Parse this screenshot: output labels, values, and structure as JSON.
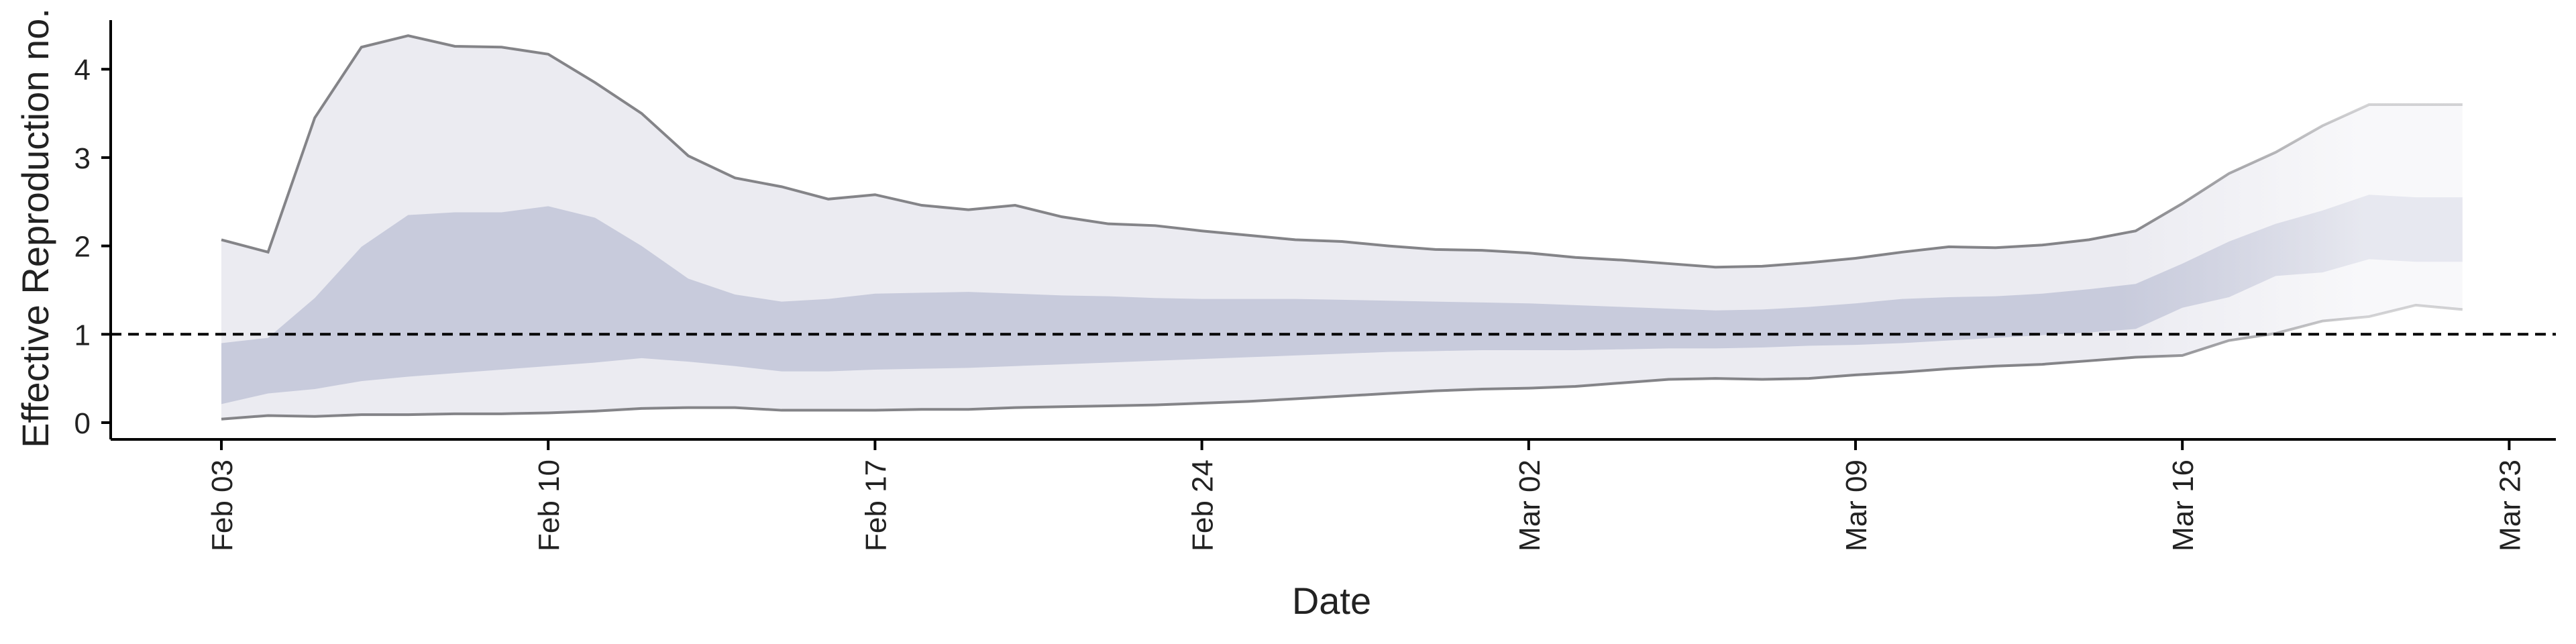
{
  "chart_data": {
    "type": "area",
    "xlabel": "Date",
    "ylabel": "Effective Reproduction no.",
    "x_tick_labels": [
      "Feb 03",
      "Feb 10",
      "Feb 17",
      "Feb 24",
      "Mar 02",
      "Mar 09",
      "Mar 16",
      "Mar 23"
    ],
    "y_ticks": [
      0,
      1,
      2,
      3,
      4
    ],
    "ylim": [
      -0.2,
      4.6
    ],
    "xlim": [
      "2020-02-01",
      "2020-03-24"
    ],
    "reference_line": {
      "y": 1,
      "style": "dashed"
    },
    "dates": [
      "2020-02-03",
      "2020-02-04",
      "2020-02-05",
      "2020-02-06",
      "2020-02-07",
      "2020-02-08",
      "2020-02-09",
      "2020-02-10",
      "2020-02-11",
      "2020-02-12",
      "2020-02-13",
      "2020-02-14",
      "2020-02-15",
      "2020-02-16",
      "2020-02-17",
      "2020-02-18",
      "2020-02-19",
      "2020-02-20",
      "2020-02-21",
      "2020-02-22",
      "2020-02-23",
      "2020-02-24",
      "2020-02-25",
      "2020-02-26",
      "2020-02-27",
      "2020-02-28",
      "2020-02-29",
      "2020-03-01",
      "2020-03-02",
      "2020-03-03",
      "2020-03-04",
      "2020-03-05",
      "2020-03-06",
      "2020-03-07",
      "2020-03-08",
      "2020-03-09",
      "2020-03-10",
      "2020-03-11",
      "2020-03-12",
      "2020-03-13",
      "2020-03-14",
      "2020-03-15",
      "2020-03-16",
      "2020-03-17",
      "2020-03-18",
      "2020-03-19",
      "2020-03-20",
      "2020-03-21",
      "2020-03-22"
    ],
    "series": [
      {
        "role": "outer_upper",
        "values": [
          2.07,
          1.93,
          3.45,
          4.25,
          4.38,
          4.26,
          4.25,
          4.17,
          3.85,
          3.5,
          3.02,
          2.77,
          2.67,
          2.53,
          2.58,
          2.46,
          2.41,
          2.46,
          2.33,
          2.25,
          2.23,
          2.17,
          2.12,
          2.07,
          2.05,
          2.0,
          1.96,
          1.95,
          1.92,
          1.87,
          1.84,
          1.8,
          1.76,
          1.77,
          1.81,
          1.86,
          1.93,
          1.99,
          1.98,
          2.01,
          2.07,
          2.17,
          2.48,
          2.82,
          3.06,
          3.36,
          3.6,
          3.6,
          3.6
        ]
      },
      {
        "role": "outer_lower",
        "values": [
          0.04,
          0.08,
          0.07,
          0.09,
          0.09,
          0.1,
          0.1,
          0.11,
          0.13,
          0.16,
          0.17,
          0.17,
          0.14,
          0.14,
          0.14,
          0.15,
          0.15,
          0.17,
          0.18,
          0.19,
          0.2,
          0.22,
          0.24,
          0.27,
          0.3,
          0.33,
          0.36,
          0.38,
          0.39,
          0.41,
          0.45,
          0.49,
          0.5,
          0.49,
          0.5,
          0.54,
          0.57,
          0.61,
          0.64,
          0.66,
          0.7,
          0.74,
          0.76,
          0.93,
          1.01,
          1.15,
          1.2,
          1.33,
          1.28
        ]
      },
      {
        "role": "inner_upper",
        "values": [
          0.9,
          0.96,
          1.41,
          1.99,
          2.35,
          2.38,
          2.38,
          2.45,
          2.32,
          2.0,
          1.63,
          1.45,
          1.37,
          1.4,
          1.46,
          1.47,
          1.48,
          1.46,
          1.44,
          1.43,
          1.41,
          1.4,
          1.4,
          1.4,
          1.39,
          1.38,
          1.37,
          1.36,
          1.35,
          1.33,
          1.31,
          1.29,
          1.27,
          1.28,
          1.31,
          1.35,
          1.4,
          1.42,
          1.43,
          1.46,
          1.51,
          1.57,
          1.8,
          2.05,
          2.25,
          2.4,
          2.58,
          2.55,
          2.55
        ]
      },
      {
        "role": "inner_lower",
        "values": [
          0.21,
          0.33,
          0.38,
          0.47,
          0.52,
          0.56,
          0.6,
          0.64,
          0.68,
          0.73,
          0.69,
          0.64,
          0.58,
          0.58,
          0.6,
          0.61,
          0.62,
          0.64,
          0.66,
          0.68,
          0.7,
          0.72,
          0.74,
          0.76,
          0.78,
          0.8,
          0.81,
          0.82,
          0.82,
          0.82,
          0.83,
          0.84,
          0.84,
          0.85,
          0.87,
          0.88,
          0.9,
          0.93,
          0.96,
          0.99,
          1.02,
          1.06,
          1.3,
          1.42,
          1.66,
          1.7,
          1.85,
          1.82,
          1.82
        ]
      }
    ],
    "colors": {
      "outer_band": "#ebebf1",
      "inner_band": "#c8cbdc",
      "bound_line": "#848488",
      "reference_line": "#000000",
      "axis": "#000000"
    },
    "grid": false,
    "legend": "none"
  }
}
